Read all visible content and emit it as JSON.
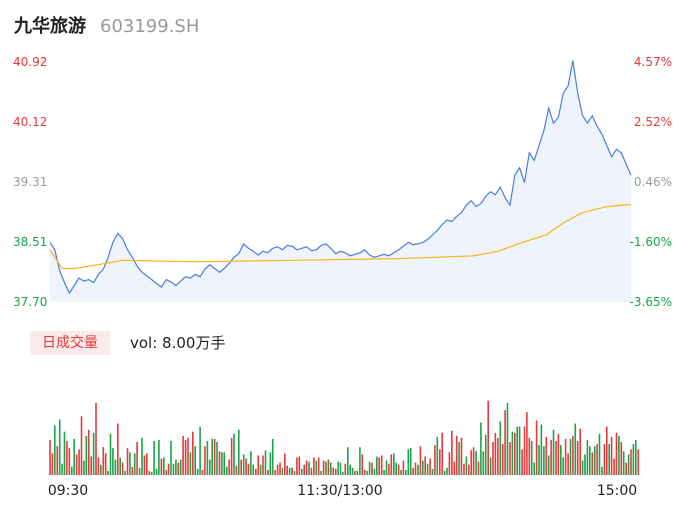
{
  "header": {
    "name": "九华旅游",
    "code": "603199.SH"
  },
  "volume_panel": {
    "tab_label": "日成交量",
    "vol_text": "vol: 8.00万手"
  },
  "colors": {
    "up": "#e8393a",
    "down": "#1aa34a",
    "neutral": "#999999",
    "price_line": "#4a7de0",
    "avg_line": "#f5b51b",
    "area_fill": "#eef3fc"
  },
  "chart_data": [
    {
      "type": "line",
      "title": "",
      "y_left_ticks": [
        "40.92",
        "40.12",
        "39.31",
        "38.51",
        "37.70"
      ],
      "y_right_ticks": [
        "4.57%",
        "2.52%",
        "0.46%",
        "-1.60%",
        "-3.65%"
      ],
      "x_ticks": [
        "09:30",
        "11:30/13:00",
        "15:00"
      ],
      "ylim": [
        37.7,
        40.92
      ],
      "prev_close": 39.13,
      "x_count": 241,
      "series": [
        {
          "role": "price",
          "points": [
            [
              0,
              38.5
            ],
            [
              2,
              38.4
            ],
            [
              4,
              38.12
            ],
            [
              6,
              37.96
            ],
            [
              8,
              37.82
            ],
            [
              10,
              37.92
            ],
            [
              12,
              38.02
            ],
            [
              14,
              37.98
            ],
            [
              16,
              38.0
            ],
            [
              18,
              37.96
            ],
            [
              20,
              38.07
            ],
            [
              22,
              38.14
            ],
            [
              24,
              38.3
            ],
            [
              26,
              38.5
            ],
            [
              28,
              38.62
            ],
            [
              30,
              38.55
            ],
            [
              32,
              38.4
            ],
            [
              34,
              38.3
            ],
            [
              36,
              38.18
            ],
            [
              38,
              38.1
            ],
            [
              40,
              38.05
            ],
            [
              42,
              38.0
            ],
            [
              44,
              37.95
            ],
            [
              46,
              37.9
            ],
            [
              48,
              38.0
            ],
            [
              50,
              37.97
            ],
            [
              52,
              37.92
            ],
            [
              54,
              37.98
            ],
            [
              56,
              38.04
            ],
            [
              58,
              38.02
            ],
            [
              60,
              38.07
            ],
            [
              62,
              38.04
            ],
            [
              64,
              38.14
            ],
            [
              66,
              38.2
            ],
            [
              68,
              38.15
            ],
            [
              70,
              38.1
            ],
            [
              72,
              38.15
            ],
            [
              74,
              38.22
            ],
            [
              76,
              38.3
            ],
            [
              78,
              38.35
            ],
            [
              80,
              38.48
            ],
            [
              82,
              38.42
            ],
            [
              84,
              38.38
            ],
            [
              86,
              38.33
            ],
            [
              88,
              38.38
            ],
            [
              90,
              38.36
            ],
            [
              92,
              38.42
            ],
            [
              94,
              38.44
            ],
            [
              96,
              38.4
            ],
            [
              98,
              38.46
            ],
            [
              100,
              38.45
            ],
            [
              102,
              38.4
            ],
            [
              104,
              38.42
            ],
            [
              106,
              38.44
            ],
            [
              108,
              38.39
            ],
            [
              110,
              38.4
            ],
            [
              112,
              38.46
            ],
            [
              114,
              38.48
            ],
            [
              116,
              38.42
            ],
            [
              118,
              38.35
            ],
            [
              120,
              38.38
            ],
            [
              122,
              38.36
            ],
            [
              124,
              38.32
            ],
            [
              126,
              38.34
            ],
            [
              128,
              38.36
            ],
            [
              130,
              38.4
            ],
            [
              132,
              38.33
            ],
            [
              134,
              38.3
            ],
            [
              136,
              38.32
            ],
            [
              138,
              38.34
            ],
            [
              140,
              38.32
            ],
            [
              142,
              38.36
            ],
            [
              144,
              38.4
            ],
            [
              146,
              38.45
            ],
            [
              148,
              38.5
            ],
            [
              150,
              38.47
            ],
            [
              152,
              38.48
            ],
            [
              154,
              38.5
            ],
            [
              156,
              38.54
            ],
            [
              158,
              38.6
            ],
            [
              160,
              38.66
            ],
            [
              162,
              38.74
            ],
            [
              164,
              38.8
            ],
            [
              166,
              38.78
            ],
            [
              168,
              38.85
            ],
            [
              170,
              38.9
            ],
            [
              172,
              39.0
            ],
            [
              174,
              39.06
            ],
            [
              176,
              38.98
            ],
            [
              178,
              39.02
            ],
            [
              180,
              39.12
            ],
            [
              182,
              39.18
            ],
            [
              184,
              39.14
            ],
            [
              186,
              39.24
            ],
            [
              188,
              39.1
            ],
            [
              190,
              39.0
            ],
            [
              192,
              39.4
            ],
            [
              194,
              39.5
            ],
            [
              196,
              39.3
            ],
            [
              198,
              39.7
            ],
            [
              200,
              39.6
            ],
            [
              202,
              39.8
            ],
            [
              204,
              40.0
            ],
            [
              206,
              40.3
            ],
            [
              208,
              40.1
            ],
            [
              210,
              40.18
            ],
            [
              212,
              40.5
            ],
            [
              214,
              40.6
            ],
            [
              216,
              40.94
            ],
            [
              218,
              40.5
            ],
            [
              220,
              40.2
            ],
            [
              222,
              40.1
            ],
            [
              224,
              40.2
            ],
            [
              226,
              40.06
            ],
            [
              228,
              39.95
            ],
            [
              230,
              39.8
            ],
            [
              232,
              39.65
            ],
            [
              234,
              39.75
            ],
            [
              236,
              39.7
            ],
            [
              238,
              39.55
            ],
            [
              240,
              39.4
            ]
          ]
        },
        {
          "role": "average",
          "points": [
            [
              0,
              38.4
            ],
            [
              5,
              38.15
            ],
            [
              10,
              38.15
            ],
            [
              20,
              38.2
            ],
            [
              30,
              38.26
            ],
            [
              60,
              38.24
            ],
            [
              100,
              38.26
            ],
            [
              140,
              38.28
            ],
            [
              160,
              38.3
            ],
            [
              175,
              38.32
            ],
            [
              185,
              38.38
            ],
            [
              195,
              38.5
            ],
            [
              205,
              38.6
            ],
            [
              212,
              38.76
            ],
            [
              220,
              38.9
            ],
            [
              230,
              38.98
            ],
            [
              240,
              39.01
            ]
          ]
        }
      ]
    },
    {
      "type": "bar",
      "title": "",
      "ylim": [
        0,
        1
      ],
      "values": [
        0.34,
        0.21,
        0.48,
        0.28,
        0.54,
        0.11,
        0.42,
        0.33,
        0.26,
        0.08,
        0.35,
        0.2,
        0.25,
        0.57,
        0.14,
        0.38,
        0.44,
        0.18,
        0.41,
        0.7,
        0.17,
        0.1,
        0.27,
        0.21,
        0.04,
        0.4,
        0.26,
        0.15,
        0.5,
        0.17,
        0.12,
        0.04,
        0.26,
        0.22,
        0.08,
        0.21,
        0.32,
        0.07,
        0.36,
        0.19,
        0.21,
        0.04,
        0.03,
        0.33,
        0.06,
        0.34,
        0.16,
        0.17,
        0.05,
        0.11,
        0.33,
        0.11,
        0.15,
        0.12,
        0.15,
        0.38,
        0.34,
        0.36,
        0.22,
        0.42,
        0.28,
        0.06,
        0.47,
        0.05,
        0.28,
        0.33,
        0.15,
        0.35,
        0.35,
        0.32,
        0.23,
        0.22,
        0.22,
        0.08,
        0.15,
        0.36,
        0.4,
        0.09,
        0.44,
        0.15,
        0.2,
        0.16,
        0.11,
        0.23,
        0.1,
        0.06,
        0.19,
        0.1,
        0.19,
        0.24,
        0.05,
        0.22,
        0.35,
        0.05,
        0.1,
        0.12,
        0.07,
        0.21,
        0.09,
        0.07,
        0.07,
        0.04,
        0.17,
        0.18,
        0.06,
        0.1,
        0.14,
        0.13,
        0.07,
        0.17,
        0.14,
        0.17,
        0.04,
        0.14,
        0.13,
        0.15,
        0.12,
        0.07,
        0.06,
        0.13,
        0.12,
        0.03,
        0.11,
        0.27,
        0.1,
        0.07,
        0.04,
        0.04,
        0.27,
        0.2,
        0.05,
        0.04,
        0.13,
        0.12,
        0.06,
        0.18,
        0.17,
        0.19,
        0.05,
        0.14,
        0.11,
        0.2,
        0.21,
        0.12,
        0.1,
        0.05,
        0.14,
        0.05,
        0.25,
        0.26,
        0.07,
        0.12,
        0.1,
        0.28,
        0.14,
        0.18,
        0.11,
        0.16,
        0.06,
        0.29,
        0.37,
        0.25,
        0.41,
        0.04,
        0.07,
        0.22,
        0.43,
        0.13,
        0.38,
        0.32,
        0.36,
        0.11,
        0.18,
        0.1,
        0.24,
        0.27,
        0.23,
        0.13,
        0.51,
        0.23,
        0.39,
        0.72,
        0.17,
        0.32,
        0.41,
        0.36,
        0.52,
        0.3,
        0.63,
        0.7,
        0.32,
        0.42,
        0.41,
        0.47,
        0.47,
        0.25,
        0.47,
        0.61,
        0.36,
        0.33,
        0.12,
        0.53,
        0.29,
        0.49,
        0.28,
        0.37,
        0.19,
        0.34,
        0.44,
        0.33,
        0.4,
        0.29,
        0.17,
        0.35,
        0.21,
        0.35,
        0.38,
        0.5,
        0.33,
        0.45,
        0.14,
        0.2,
        0.34,
        0.28,
        0.22,
        0.28,
        0.3,
        0.4,
        0.08,
        0.3,
        0.47,
        0.3,
        0.37,
        0.16,
        0.41,
        0.38,
        0.32,
        0.23,
        0.12,
        0.2,
        0.25,
        0.3,
        0.34,
        0.25
      ],
      "colors": [
        "up",
        "up",
        "down",
        "up",
        "down",
        "down",
        "down",
        "up",
        "up",
        "down",
        "down",
        "up",
        "up",
        "up",
        "down",
        "down",
        "up",
        "up",
        "down",
        "up",
        "up",
        "down",
        "up",
        "up",
        "down",
        "down",
        "down",
        "down",
        "up",
        "down",
        "up",
        "down",
        "up",
        "down",
        "up",
        "down",
        "up",
        "down",
        "down",
        "up",
        "up",
        "up",
        "down",
        "down",
        "down",
        "down",
        "up",
        "down",
        "up",
        "up",
        "down",
        "down",
        "down",
        "up",
        "down",
        "up",
        "up",
        "up",
        "down",
        "up",
        "down",
        "down",
        "down",
        "up",
        "up",
        "down",
        "down",
        "down",
        "up",
        "down",
        "up",
        "down",
        "down",
        "down",
        "up",
        "up",
        "down",
        "up",
        "down",
        "up",
        "down",
        "up",
        "up",
        "down",
        "down",
        "up",
        "up",
        "down",
        "up",
        "down",
        "up",
        "down",
        "down",
        "up",
        "up",
        "up",
        "down",
        "up",
        "up",
        "down",
        "up",
        "down",
        "up",
        "up",
        "down",
        "up",
        "up",
        "down",
        "up",
        "up",
        "down",
        "up",
        "down",
        "up",
        "down",
        "up",
        "down",
        "up",
        "up",
        "down",
        "down",
        "down",
        "up",
        "down",
        "down",
        "down",
        "up",
        "down",
        "down",
        "up",
        "up",
        "down",
        "down",
        "up",
        "down",
        "down",
        "up",
        "up",
        "down",
        "down",
        "up",
        "up",
        "down",
        "down",
        "up",
        "down",
        "up",
        "down",
        "down",
        "down",
        "up",
        "up",
        "down",
        "up",
        "down",
        "up",
        "down",
        "up",
        "down",
        "up",
        "down",
        "up",
        "up",
        "down",
        "down",
        "up",
        "up",
        "up",
        "up",
        "down",
        "up",
        "up",
        "down",
        "up",
        "up",
        "up",
        "down",
        "up",
        "down",
        "down",
        "down",
        "up",
        "down",
        "up",
        "up",
        "up",
        "down",
        "up",
        "up",
        "down",
        "up",
        "down",
        "up",
        "down",
        "down",
        "up",
        "up",
        "up",
        "up",
        "down",
        "down",
        "up",
        "down",
        "down",
        "down",
        "up",
        "down",
        "up",
        "down",
        "up",
        "up",
        "down",
        "down",
        "up",
        "up",
        "down",
        "up",
        "down",
        "up",
        "up",
        "down",
        "down",
        "down",
        "down",
        "up",
        "down",
        "up",
        "down",
        "down",
        "up",
        "up",
        "down",
        "up",
        "up",
        "up",
        "down",
        "up",
        "down",
        "up",
        "down",
        "up",
        "down",
        "down",
        "up",
        "down",
        "up"
      ]
    }
  ]
}
